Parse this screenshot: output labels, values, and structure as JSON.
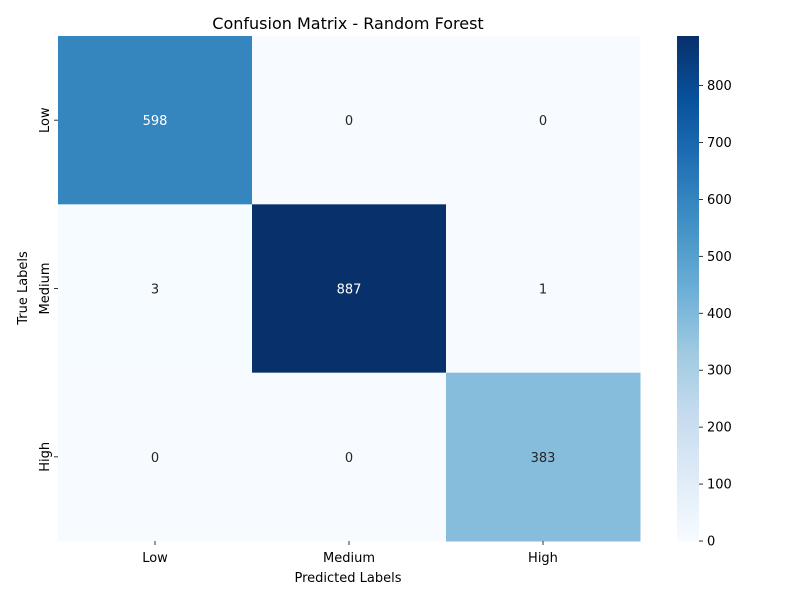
{
  "chart_data": {
    "type": "heatmap",
    "title": "Confusion Matrix - Random Forest",
    "xlabel": "Predicted Labels",
    "ylabel": "True Labels",
    "x_categories": [
      "Low",
      "Medium",
      "High"
    ],
    "y_categories": [
      "Low",
      "Medium",
      "High"
    ],
    "values": [
      [
        598,
        0,
        0
      ],
      [
        3,
        887,
        1
      ],
      [
        0,
        0,
        383
      ]
    ],
    "colormap": "Blues",
    "colorbar": {
      "range": [
        0,
        887
      ],
      "ticks": [
        0,
        100,
        200,
        300,
        400,
        500,
        600,
        700,
        800
      ]
    },
    "annotations": true,
    "grid": false
  }
}
